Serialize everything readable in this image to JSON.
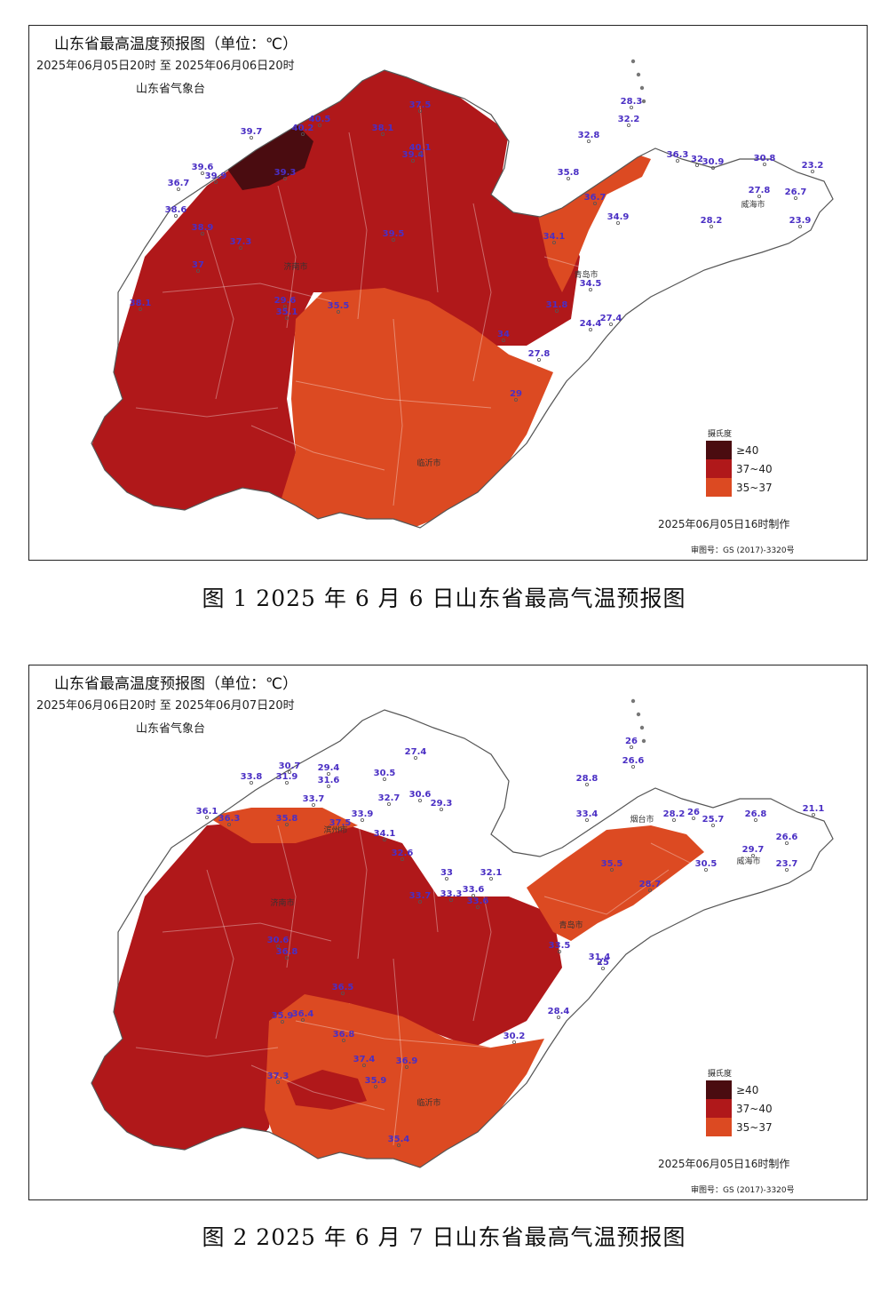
{
  "colors": {
    "ge40": "#4a0c10",
    "r37_40": "#b0181a",
    "r35_37": "#dc4a22",
    "none": "#ffffff",
    "value_text": "#4a2fc4"
  },
  "legend": {
    "title": "摄氏度",
    "items": [
      {
        "label": "≥40",
        "color": "#4a0c10"
      },
      {
        "label": "37~40",
        "color": "#b0181a"
      },
      {
        "label": "35~37",
        "color": "#dc4a22"
      }
    ]
  },
  "maps": [
    {
      "title": "山东省最高温度预报图（单位：℃）",
      "period": "2025年06月05日20时  至  2025年06月06日20时",
      "issuer": "山东省气象台",
      "made": "2025年06月05日16时制作",
      "review": "审图号：GS (2017)-3320号",
      "caption": "图 1   2025 年 6 月 6 日山东省最高气温预报图",
      "cities": [
        "济南市",
        "青岛市",
        "威海市",
        "临沂市"
      ],
      "readings": [
        "40.5",
        "40.2",
        "39.7",
        "39.6",
        "39.9",
        "39.3",
        "38.1",
        "37.5",
        "39.4",
        "40.1",
        "36.7",
        "38.6",
        "38.9",
        "37.3",
        "39.5",
        "37",
        "38.1",
        "35.5",
        "29.6",
        "35.1",
        "35.8",
        "36.7",
        "34.9",
        "34.1",
        "34.5",
        "31.8",
        "27.4",
        "24.4",
        "27.8",
        "29",
        "34",
        "28.3",
        "32.2",
        "32.8",
        "36.3",
        "32",
        "30.9",
        "30.8",
        "23.2",
        "27.8",
        "26.7",
        "28.2",
        "23.9"
      ]
    },
    {
      "title": "山东省最高温度预报图（单位：℃）",
      "period": "2025年06月06日20时  至  2025年06月07日20时",
      "issuer": "山东省气象台",
      "made": "2025年06月05日16时制作",
      "review": "审图号：GS (2017)-3320号",
      "caption": "图 2   2025 年 6 月 7 日山东省最高气温预报图",
      "cities": [
        "济南市",
        "滨州市",
        "青岛市",
        "威海市",
        "临沂市",
        "烟台市"
      ],
      "readings": [
        "33.8",
        "30.7",
        "29.4",
        "31.9",
        "31.6",
        "30.5",
        "27.4",
        "33.7",
        "32.7",
        "30.6",
        "29.3",
        "33.9",
        "34.1",
        "32.6",
        "33",
        "32.1",
        "33.6",
        "33.3",
        "33.7",
        "33.6",
        "36.1",
        "36.3",
        "35.8",
        "37.5",
        "36.5",
        "35.9",
        "36.4",
        "36.8",
        "37.4",
        "37.3",
        "35.9",
        "36.9",
        "35.4",
        "30.6",
        "36.8",
        "30.2",
        "28.4",
        "31.4",
        "25",
        "33.5",
        "33.4",
        "35.5",
        "28.7",
        "30.5",
        "26",
        "26.6",
        "28.8",
        "28.2",
        "26",
        "25.7",
        "26.8",
        "21.1",
        "29.7",
        "26.6",
        "23.7"
      ]
    }
  ]
}
